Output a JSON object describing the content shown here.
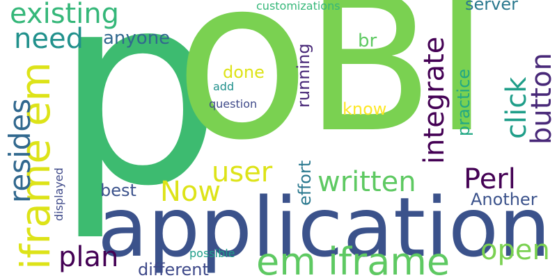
{
  "words": {
    "p": {
      "text": "p",
      "color": "#3dbb70"
    },
    "o": {
      "text": "o",
      "color": "#7ad151"
    },
    "bi": {
      "text": "BI",
      "color": "#7ad151"
    },
    "application": {
      "text": "application",
      "color": "#3b528b"
    },
    "em_iframe": {
      "text": "em iframe",
      "color": "#5ec962"
    },
    "iframe_em": {
      "text": "iframe em",
      "color": "#dde318"
    },
    "existing": {
      "text": "existing",
      "color": "#35b779"
    },
    "need": {
      "text": "need",
      "color": "#21918c"
    },
    "resides": {
      "text": "resides",
      "color": "#31688e"
    },
    "integrate": {
      "text": "integrate",
      "color": "#440154"
    },
    "click": {
      "text": "click",
      "color": "#1f9e89"
    },
    "button": {
      "text": "button",
      "color": "#482878"
    },
    "written": {
      "text": "written",
      "color": "#5ec962"
    },
    "perl": {
      "text": "Perl",
      "color": "#440154"
    },
    "user": {
      "text": "user",
      "color": "#dde318"
    },
    "now": {
      "text": "Now",
      "color": "#dde318"
    },
    "plan": {
      "text": "plan",
      "color": "#440154"
    },
    "open": {
      "text": "open",
      "color": "#7ad151"
    },
    "anyone": {
      "text": "anyone",
      "color": "#31688e"
    },
    "server": {
      "text": "server",
      "color": "#2a788e"
    },
    "customizations": {
      "text": "customizations",
      "color": "#35b779"
    },
    "br": {
      "text": "br",
      "color": "#5ec962"
    },
    "done": {
      "text": "done",
      "color": "#dde318"
    },
    "know": {
      "text": "know",
      "color": "#fde725"
    },
    "add": {
      "text": "add",
      "color": "#21918c"
    },
    "question": {
      "text": "question",
      "color": "#3e4989"
    },
    "running": {
      "text": "running",
      "color": "#482878"
    },
    "practice": {
      "text": "practice",
      "color": "#22a884"
    },
    "effort": {
      "text": "effort",
      "color": "#2a788e"
    },
    "best": {
      "text": "best",
      "color": "#3b528b"
    },
    "another": {
      "text": "Another",
      "color": "#3b528b"
    },
    "different": {
      "text": "different",
      "color": "#3e4989"
    },
    "possible": {
      "text": "possible",
      "color": "#1f9e89"
    },
    "displayed": {
      "text": "displayed",
      "color": "#3e4989"
    }
  }
}
